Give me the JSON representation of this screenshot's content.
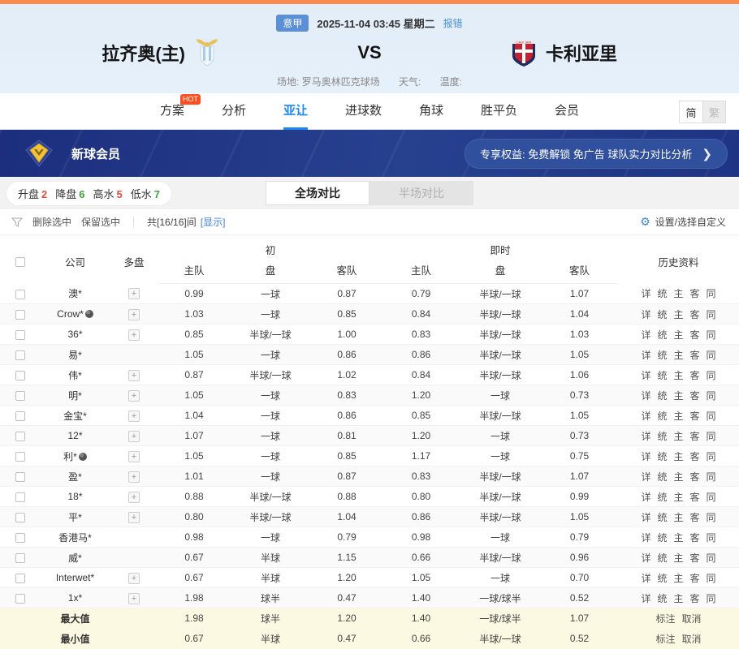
{
  "header": {
    "league": "意甲",
    "datetime": "2025-11-04 03:45 星期二",
    "report_error": "报错",
    "home_team": "拉齐奥(主)",
    "away_team": "卡利亚里",
    "vs": "VS",
    "venue": "场地: 罗马奥林匹克球场",
    "weather": "天气:",
    "temperature": "温度:"
  },
  "nav": {
    "tabs": [
      {
        "label": "方案",
        "badge": "HOT"
      },
      {
        "label": "分析"
      },
      {
        "label": "亚让"
      },
      {
        "label": "进球数"
      },
      {
        "label": "角球"
      },
      {
        "label": "胜平负"
      },
      {
        "label": "会员"
      }
    ],
    "lang_simplified": "简",
    "lang_traditional": "繁"
  },
  "banner": {
    "title": "新球会员",
    "promo": "专享权益: 免费解锁 免广告 球队实力对比分析",
    "arrow": "❯"
  },
  "filters": {
    "items": [
      {
        "label": "升盘",
        "count": "2",
        "color": "#e34d3c"
      },
      {
        "label": "降盘",
        "count": "6",
        "color": "#3fa33f"
      },
      {
        "label": "高水",
        "count": "5",
        "color": "#e34d3c"
      },
      {
        "label": "低水",
        "count": "7",
        "color": "#3fa33f"
      }
    ]
  },
  "view_tabs": {
    "full": "全场对比",
    "half": "半场对比"
  },
  "toolbar": {
    "delete_selected": "删除选中",
    "keep_selected": "保留选中",
    "count_text": "共[16/16]间",
    "show_link": "[显示]",
    "settings": "设置/选择自定义"
  },
  "table": {
    "headers": {
      "company": "公司",
      "multi": "多盘",
      "initial": "初",
      "instant": "即时",
      "pan": "盘",
      "home": "主队",
      "away": "客队",
      "history": "历史资料"
    },
    "history_links": [
      "详",
      "统",
      "主",
      "客",
      "同"
    ],
    "rows": [
      {
        "company": "澳*",
        "ball": false,
        "multi": true,
        "init_home": "0.99",
        "init_line": "一球",
        "init_away": "0.87",
        "live_home": "0.79",
        "live_line": "半球/一球",
        "live_away": "1.07"
      },
      {
        "company": "Crow*",
        "ball": true,
        "multi": true,
        "init_home": "1.03",
        "init_line": "一球",
        "init_away": "0.85",
        "live_home": "0.84",
        "live_line": "半球/一球",
        "live_away": "1.04"
      },
      {
        "company": "36*",
        "ball": false,
        "multi": true,
        "init_home": "0.85",
        "init_line": "半球/一球",
        "init_away": "1.00",
        "live_home": "0.83",
        "live_line": "半球/一球",
        "live_away": "1.03"
      },
      {
        "company": "易*",
        "ball": false,
        "multi": false,
        "init_home": "1.05",
        "init_line": "一球",
        "init_away": "0.86",
        "live_home": "0.86",
        "live_line": "半球/一球",
        "live_away": "1.05"
      },
      {
        "company": "伟*",
        "ball": false,
        "multi": true,
        "init_home": "0.87",
        "init_line": "半球/一球",
        "init_away": "1.02",
        "live_home": "0.84",
        "live_line": "半球/一球",
        "live_away": "1.06"
      },
      {
        "company": "明*",
        "ball": false,
        "multi": true,
        "init_home": "1.05",
        "init_line": "一球",
        "init_away": "0.83",
        "live_home": "1.20",
        "live_line": "一球",
        "live_away": "0.73"
      },
      {
        "company": "金宝*",
        "ball": false,
        "multi": true,
        "init_home": "1.04",
        "init_line": "一球",
        "init_away": "0.86",
        "live_home": "0.85",
        "live_line": "半球/一球",
        "live_away": "1.05"
      },
      {
        "company": "12*",
        "ball": false,
        "multi": true,
        "init_home": "1.07",
        "init_line": "一球",
        "init_away": "0.81",
        "live_home": "1.20",
        "live_line": "一球",
        "live_away": "0.73"
      },
      {
        "company": "利*",
        "ball": true,
        "multi": true,
        "init_home": "1.05",
        "init_line": "一球",
        "init_away": "0.85",
        "live_home": "1.17",
        "live_line": "一球",
        "live_away": "0.75"
      },
      {
        "company": "盈*",
        "ball": false,
        "multi": true,
        "init_home": "1.01",
        "init_line": "一球",
        "init_away": "0.87",
        "live_home": "0.83",
        "live_line": "半球/一球",
        "live_away": "1.07"
      },
      {
        "company": "18*",
        "ball": false,
        "multi": true,
        "init_home": "0.88",
        "init_line": "半球/一球",
        "init_away": "0.88",
        "live_home": "0.80",
        "live_line": "半球/一球",
        "live_away": "0.99"
      },
      {
        "company": "平*",
        "ball": false,
        "multi": true,
        "init_home": "0.80",
        "init_line": "半球/一球",
        "init_away": "1.04",
        "live_home": "0.86",
        "live_line": "半球/一球",
        "live_away": "1.05"
      },
      {
        "company": "香港马*",
        "ball": false,
        "multi": false,
        "init_home": "0.98",
        "init_line": "一球",
        "init_away": "0.79",
        "live_home": "0.98",
        "live_line": "一球",
        "live_away": "0.79"
      },
      {
        "company": "威*",
        "ball": false,
        "multi": false,
        "init_home": "0.67",
        "init_line": "半球",
        "init_away": "1.15",
        "live_home": "0.66",
        "live_line": "半球/一球",
        "live_away": "0.96"
      },
      {
        "company": "Interwet*",
        "ball": false,
        "multi": true,
        "init_home": "0.67",
        "init_line": "半球",
        "init_away": "1.20",
        "live_home": "1.05",
        "live_line": "一球",
        "live_away": "0.70"
      },
      {
        "company": "1x*",
        "ball": false,
        "multi": true,
        "init_home": "1.98",
        "init_line": "球半",
        "init_away": "0.47",
        "live_home": "1.40",
        "live_line": "一球/球半",
        "live_away": "0.52"
      }
    ],
    "footer": [
      {
        "label": "最大值",
        "init_home": "1.98",
        "init_line": "球半",
        "init_away": "1.20",
        "live_home": "1.40",
        "live_line": "一球/球半",
        "live_away": "1.07"
      },
      {
        "label": "最小值",
        "init_home": "0.67",
        "init_line": "半球",
        "init_away": "0.47",
        "live_home": "0.66",
        "live_line": "半球/一球",
        "live_away": "0.52"
      }
    ],
    "footer_links": [
      "标注",
      "取消"
    ]
  }
}
